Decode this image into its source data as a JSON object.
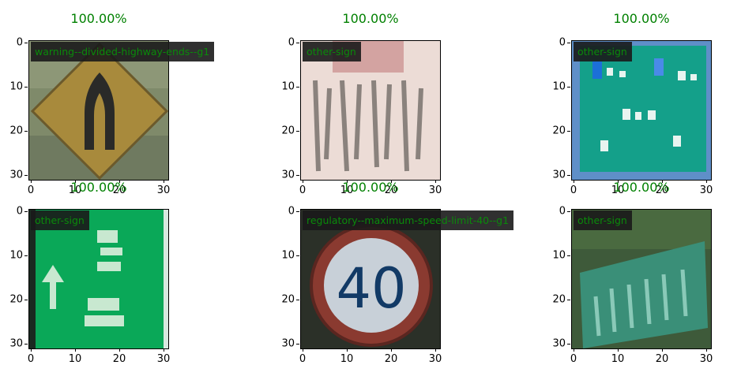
{
  "chart_data": [
    {
      "type": "image",
      "title": "100.00%",
      "label": "warning--divided-highway-ends--g1",
      "xticks": [
        "0",
        "10",
        "20",
        "30"
      ],
      "yticks": [
        "0",
        "10",
        "20",
        "30"
      ],
      "xlim": [
        0,
        32
      ],
      "ylim": [
        32,
        0
      ]
    },
    {
      "type": "image",
      "title": "100.00%",
      "label": "other-sign",
      "xticks": [
        "0",
        "10",
        "20",
        "30"
      ],
      "yticks": [
        "0",
        "10",
        "20",
        "30"
      ],
      "xlim": [
        0,
        32
      ],
      "ylim": [
        32,
        0
      ]
    },
    {
      "type": "image",
      "title": "100.00%",
      "label": "other-sign",
      "xticks": [
        "0",
        "10",
        "20",
        "30"
      ],
      "yticks": [
        "0",
        "10",
        "20",
        "30"
      ],
      "xlim": [
        0,
        32
      ],
      "ylim": [
        32,
        0
      ]
    },
    {
      "type": "image",
      "title": "100.00%",
      "label": "other-sign",
      "xticks": [
        "0",
        "10",
        "20",
        "30"
      ],
      "yticks": [
        "0",
        "10",
        "20",
        "30"
      ],
      "xlim": [
        0,
        32
      ],
      "ylim": [
        32,
        0
      ]
    },
    {
      "type": "image",
      "title": "100.00%",
      "label": "regulatory--maximum-speed-limit-40--g1",
      "xticks": [
        "0",
        "10",
        "20",
        "30"
      ],
      "yticks": [
        "0",
        "10",
        "20",
        "30"
      ],
      "xlim": [
        0,
        32
      ],
      "ylim": [
        32,
        0
      ]
    },
    {
      "type": "image",
      "title": "100.00%",
      "label": "other-sign",
      "xticks": [
        "0",
        "10",
        "20",
        "30"
      ],
      "yticks": [
        "0",
        "10",
        "20",
        "30"
      ],
      "xlim": [
        0,
        32
      ],
      "ylim": [
        32,
        0
      ]
    }
  ],
  "colors": {
    "title": "#008000",
    "label_text": "#0a8a0a",
    "label_bg": "#1a1a1a"
  }
}
